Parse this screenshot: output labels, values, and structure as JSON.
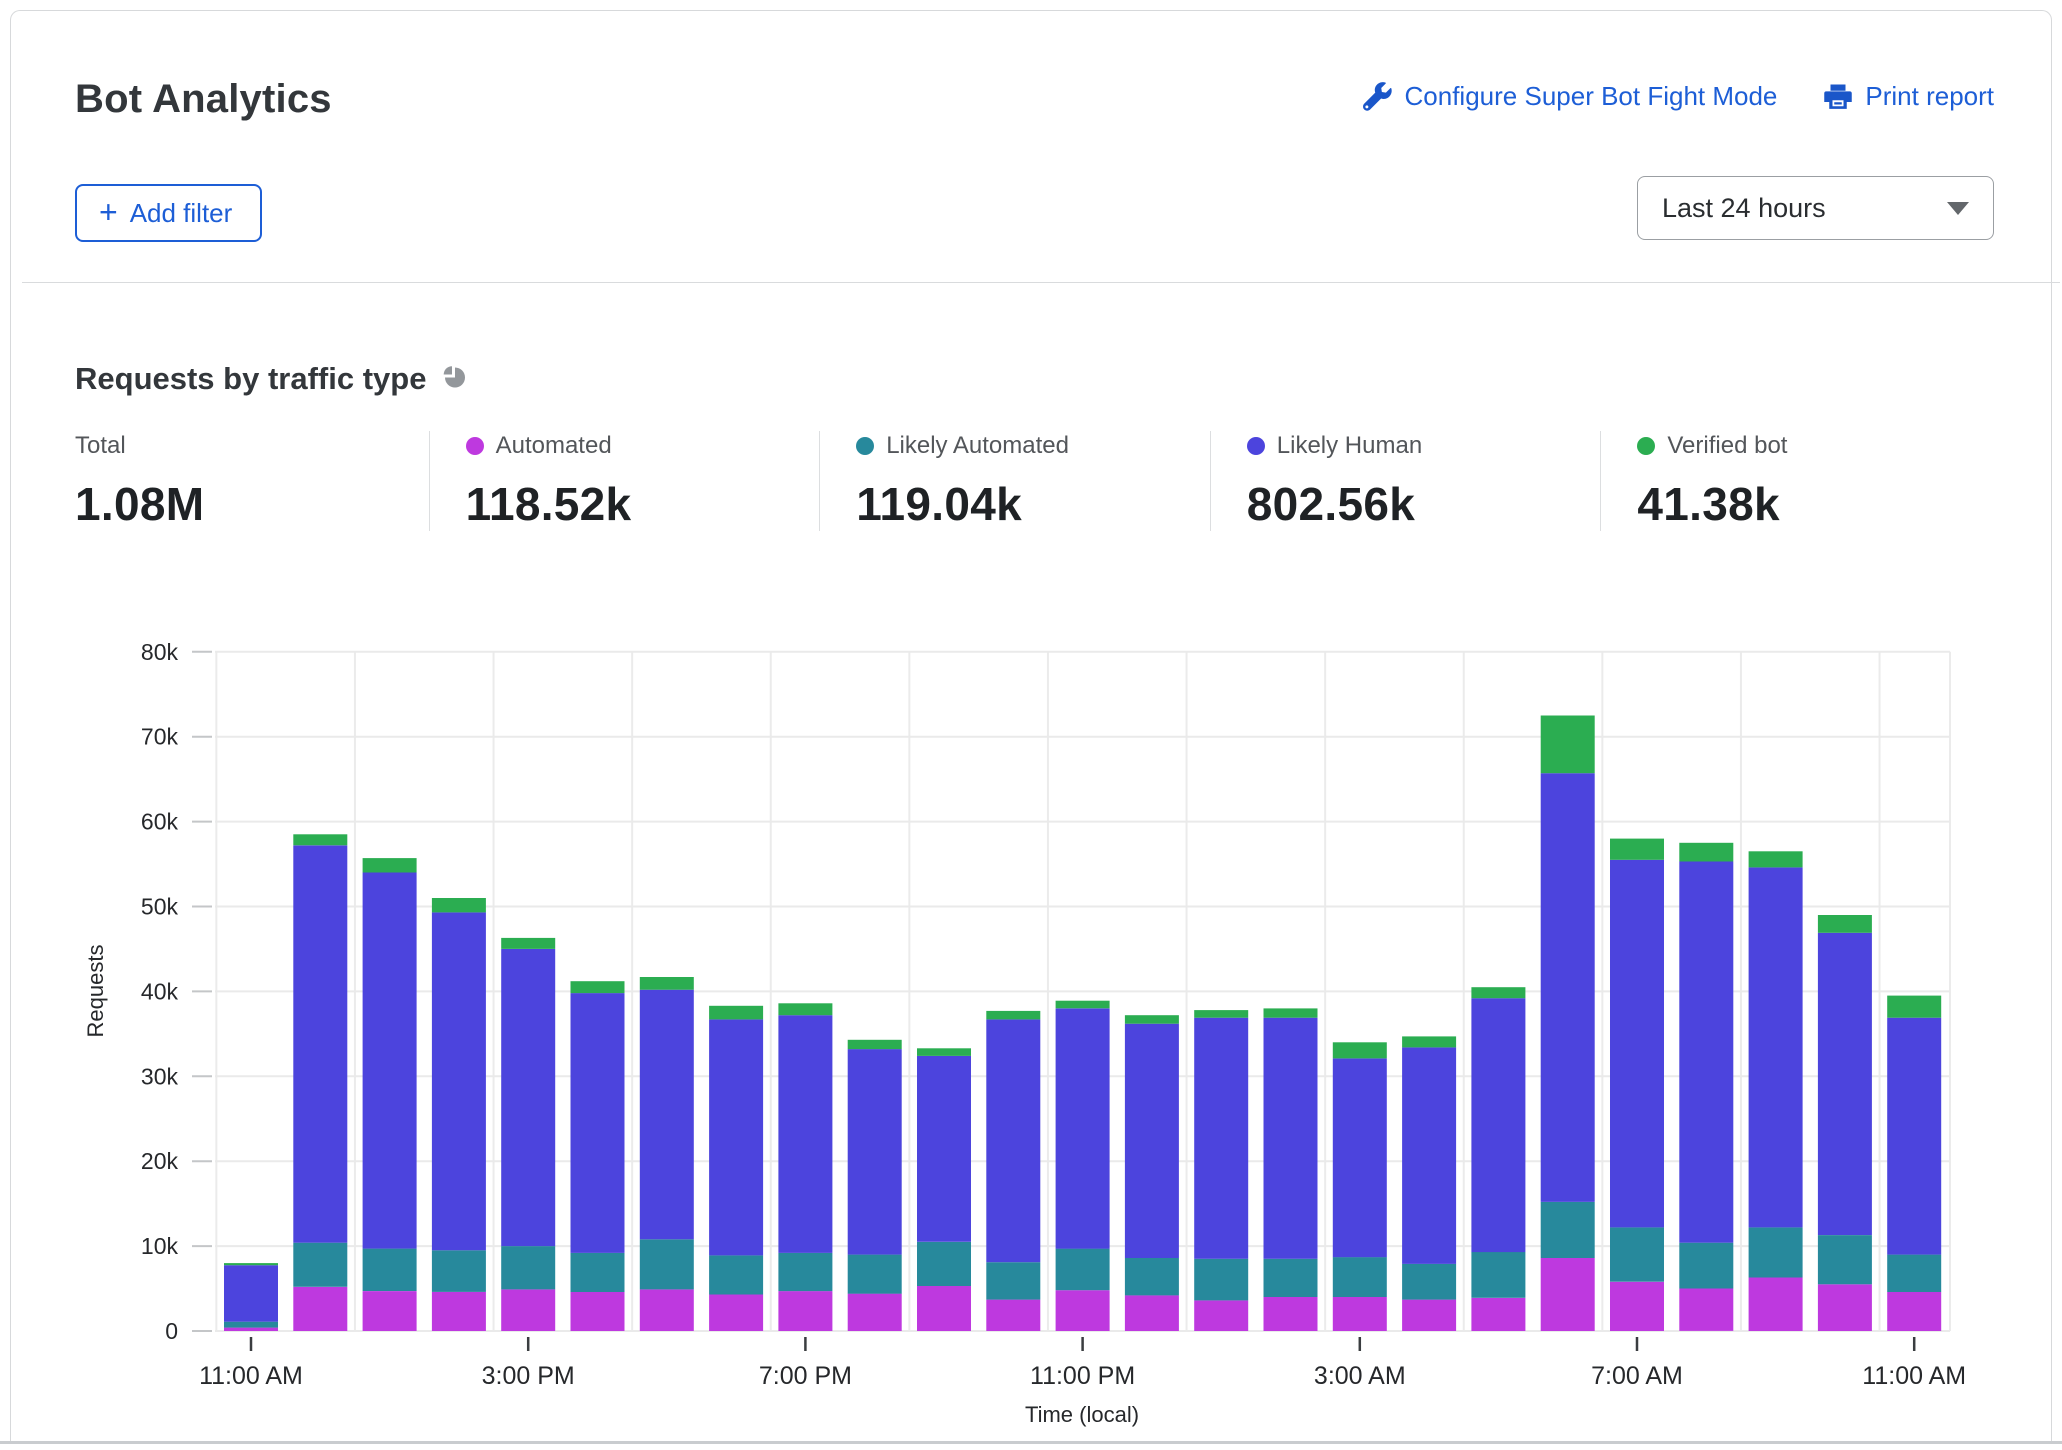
{
  "header": {
    "title": "Bot Analytics",
    "configure_link": "Configure Super Bot Fight Mode",
    "print_link": "Print report",
    "add_filter_label": "Add filter",
    "time_range_value": "Last 24 hours"
  },
  "section": {
    "title": "Requests by traffic type"
  },
  "stats": [
    {
      "label": "Total",
      "value": "1.08M",
      "color": ""
    },
    {
      "label": "Automated",
      "value": "118.52k",
      "color": "#be39df"
    },
    {
      "label": "Likely Automated",
      "value": "119.04k",
      "color": "#27899c"
    },
    {
      "label": "Likely Human",
      "value": "802.56k",
      "color": "#4c44dd"
    },
    {
      "label": "Verified bot",
      "value": "41.38k",
      "color": "#2bad51"
    }
  ],
  "chart_data": {
    "type": "bar",
    "stacked": true,
    "title": "Requests by traffic type",
    "xlabel": "Time (local)",
    "ylabel": "Requests",
    "ylim": [
      0,
      80000
    ],
    "grid": true,
    "y_ticks": [
      "0",
      "10k",
      "20k",
      "30k",
      "40k",
      "50k",
      "60k",
      "70k",
      "80k"
    ],
    "y_tick_values": [
      0,
      10000,
      20000,
      30000,
      40000,
      50000,
      60000,
      70000,
      80000
    ],
    "x_tick_labels": [
      "11:00 AM",
      "3:00 PM",
      "7:00 PM",
      "11:00 PM",
      "3:00 AM",
      "7:00 AM",
      "11:00 AM"
    ],
    "x_tick_indices": [
      0,
      4,
      8,
      12,
      16,
      20,
      24
    ],
    "categories": [
      "11:00 AM",
      "12:00 PM",
      "1:00 PM",
      "2:00 PM",
      "3:00 PM",
      "4:00 PM",
      "5:00 PM",
      "6:00 PM",
      "7:00 PM",
      "8:00 PM",
      "9:00 PM",
      "10:00 PM",
      "11:00 PM",
      "12:00 AM",
      "1:00 AM",
      "2:00 AM",
      "3:00 AM",
      "4:00 AM",
      "5:00 AM",
      "6:00 AM",
      "7:00 AM",
      "8:00 AM",
      "9:00 AM",
      "10:00 AM",
      "11:00 AM"
    ],
    "series": [
      {
        "name": "Automated",
        "color": "#be39df",
        "values": [
          400,
          5200,
          4700,
          4600,
          4900,
          4600,
          4900,
          4300,
          4700,
          4400,
          5300,
          3700,
          4800,
          4200,
          3600,
          4000,
          4000,
          3700,
          3900,
          8600,
          5800,
          5000,
          6300,
          5500,
          4600
        ]
      },
      {
        "name": "Likely Automated",
        "color": "#27899c",
        "values": [
          700,
          5200,
          5000,
          4900,
          5100,
          4600,
          5900,
          4600,
          4500,
          4600,
          5200,
          4400,
          4900,
          4400,
          4900,
          4500,
          4700,
          4200,
          5400,
          6600,
          6400,
          5400,
          5900,
          5800,
          4400
        ]
      },
      {
        "name": "Likely Human",
        "color": "#4c44dd",
        "values": [
          6650,
          46800,
          44300,
          39800,
          35000,
          30600,
          29400,
          27800,
          28000,
          24200,
          21900,
          28600,
          28300,
          27600,
          28400,
          28400,
          23400,
          25500,
          29900,
          50500,
          43300,
          44900,
          42400,
          35600,
          27900
        ]
      },
      {
        "name": "Verified bot",
        "color": "#2bad51",
        "values": [
          250,
          1300,
          1700,
          1700,
          1300,
          1400,
          1500,
          1600,
          1400,
          1100,
          900,
          1000,
          900,
          1000,
          900,
          1100,
          1900,
          1300,
          1300,
          6800,
          2500,
          2200,
          1900,
          2100,
          2600
        ]
      }
    ],
    "legend_position": "top"
  }
}
